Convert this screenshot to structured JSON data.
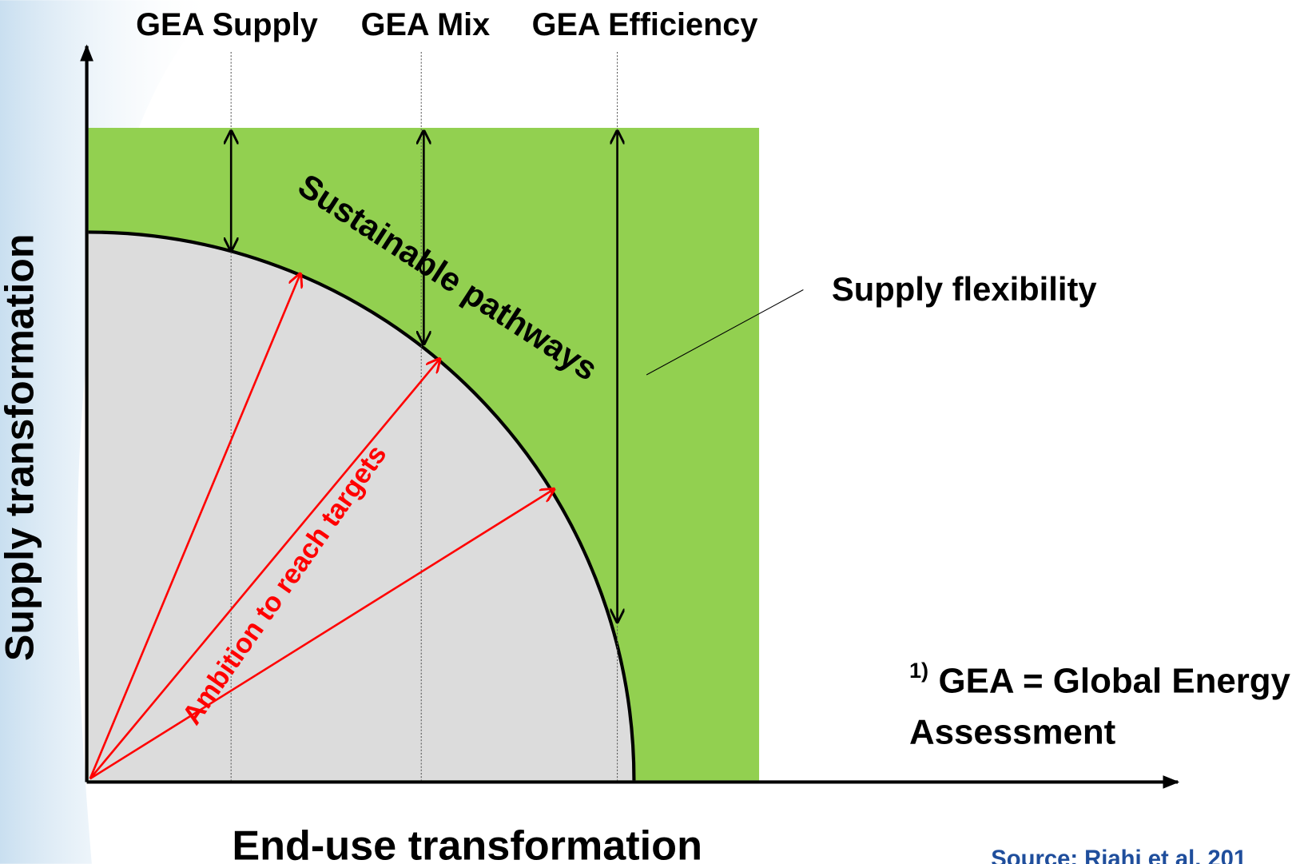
{
  "scenarios": [
    "GEA Supply",
    "GEA Mix",
    "GEA Efficiency"
  ],
  "frontier_label": "Sustainable pathways",
  "ambition_label": "Ambition to reach targets",
  "flexibility_label": "Supply flexibility",
  "y_axis_label": "Supply transformation",
  "x_axis_label": "End-use transformation",
  "footnote": {
    "marker": "1)",
    "line1": "GEA = Global Energy",
    "line2": "Assessment"
  },
  "source": "Source: Riahi et al. 201"
}
